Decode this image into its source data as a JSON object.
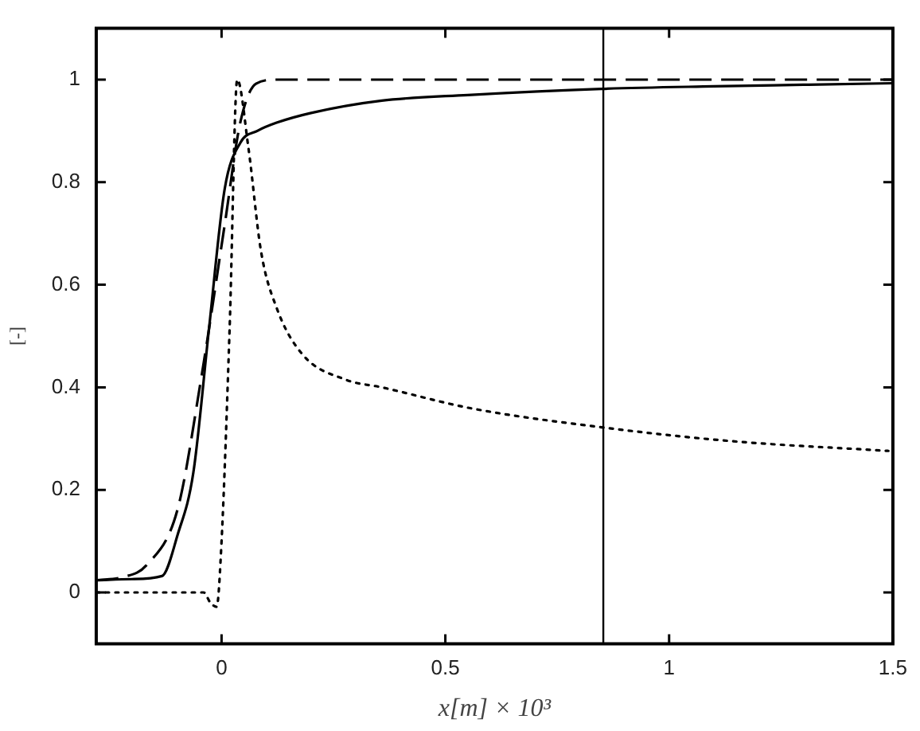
{
  "chart_data": {
    "type": "line",
    "xlabel": "x[m] × 10³",
    "ylabel": "[-]",
    "xlim": [
      -0.28,
      1.5
    ],
    "xticks": [
      0,
      0.5,
      1,
      1.5
    ],
    "ylim": [
      -0.1,
      1.1
    ],
    "yticks": [
      0,
      0.2,
      0.4,
      0.6,
      0.8,
      1
    ],
    "grid": false,
    "legend": false,
    "marker": "none",
    "series": [
      {
        "color": "#000000",
        "line_style": "solid",
        "x": [
          -0.28,
          -0.2,
          -0.133,
          -0.098,
          -0.063,
          -0.028,
          0.007,
          0.042,
          0.08,
          0.123,
          0.2,
          0.358,
          0.55,
          0.849,
          1.1,
          1.3,
          1.5
        ],
        "values": [
          0.024,
          0.026,
          0.032,
          0.113,
          0.234,
          0.515,
          0.787,
          0.877,
          0.9,
          0.916,
          0.935,
          0.959,
          0.97,
          0.982,
          0.987,
          0.99,
          0.993
        ]
      },
      {
        "color": "#000000",
        "line_style": "dashed",
        "x": [
          -0.28,
          -0.22,
          -0.168,
          -0.098,
          -0.046,
          0.007,
          0.042,
          0.077,
          0.123,
          0.3,
          0.6,
          1.0,
          1.5
        ],
        "values": [
          0.024,
          0.03,
          0.053,
          0.163,
          0.415,
          0.717,
          0.917,
          0.992,
          1.0,
          1.0,
          1.0,
          1.0,
          1.0
        ]
      },
      {
        "color": "#000000",
        "line_style": "dotted",
        "x": [
          -0.28,
          -0.1,
          -0.04,
          -0.025,
          -0.011,
          0.0,
          0.018,
          0.035,
          0.06,
          0.088,
          0.123,
          0.18,
          0.277,
          0.358,
          0.558,
          0.849,
          1.14,
          1.49
        ],
        "values": [
          0.0,
          0.0,
          0.0,
          -0.02,
          -0.028,
          0.1,
          0.515,
          1.0,
          0.867,
          0.666,
          0.555,
          0.465,
          0.415,
          0.4,
          0.359,
          0.322,
          0.295,
          0.276
        ]
      }
    ],
    "ref_lines": [
      {
        "axis": "x",
        "value": 0.853,
        "color": "#000000",
        "line_style": "solid"
      }
    ]
  }
}
